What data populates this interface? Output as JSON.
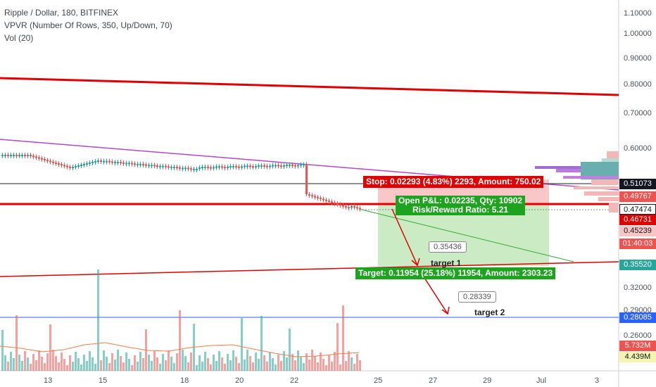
{
  "legend": {
    "title": "Ripple / Dollar, 180, BITFINEX",
    "vpvr": "VPVR (Number Of Rows, 350, Up/Down, 70)",
    "vol": "Vol (20)"
  },
  "price_axis": [
    "1.10000",
    "1.00000",
    "0.90000",
    "0.80000",
    "0.70000",
    "0.60000",
    "0.32000",
    "0.29000",
    "0.26000"
  ],
  "date_axis": [
    "13",
    "15",
    "18",
    "20",
    "22",
    "25",
    "27",
    "29",
    "Jul",
    "3"
  ],
  "price_badges": {
    "b1": "0.51073",
    "b2": "0.49767",
    "b3": "0.47474",
    "b4": "0.46731",
    "b5": "0.45239",
    "timer": "01:40:03",
    "b6": "0.35520",
    "b7": "0.28085",
    "vol1": "5.732M",
    "vol2": "4.439M"
  },
  "position": {
    "stop": "Stop: 0.02293 (4.83%) 2293, Amount: 750.02",
    "open_pl": "Open P&L: 0.02235, Qty: 10902",
    "rr": "Risk/Reward Ratio: 5.21",
    "target": "Target: 0.11954 (25.18%) 11954, Amount: 2303.23"
  },
  "annotations": {
    "callout1": "0.35436",
    "target1": "target 1",
    "callout2": "0.28339",
    "target2": "target 2"
  },
  "colors": {
    "up": "#26a69a",
    "down": "#ef5350",
    "trend": "#e00000",
    "accent_blue": "#2962ff"
  }
}
